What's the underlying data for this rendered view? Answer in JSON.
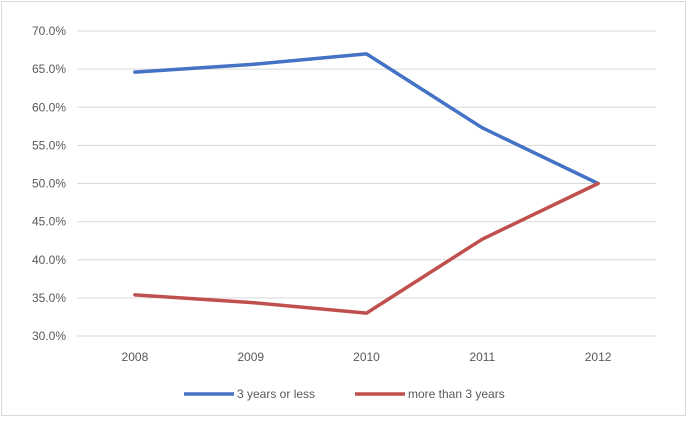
{
  "chart_data": {
    "type": "line",
    "title": "",
    "xlabel": "",
    "ylabel": "",
    "categories": [
      "2008",
      "2009",
      "2010",
      "2011",
      "2012"
    ],
    "ylim": [
      30.0,
      70.0
    ],
    "yticks": [
      30.0,
      35.0,
      40.0,
      45.0,
      50.0,
      55.0,
      60.0,
      65.0,
      70.0
    ],
    "ytick_labels": [
      "30.0%",
      "35.0%",
      "40.0%",
      "45.0%",
      "50.0%",
      "55.0%",
      "60.0%",
      "65.0%",
      "70.0%"
    ],
    "grid": true,
    "legend_position": "bottom",
    "series": [
      {
        "name": "3 years or less",
        "color": "#4472c4",
        "values": [
          64.6,
          65.6,
          67.0,
          57.3,
          50.0
        ]
      },
      {
        "name": "more than 3 years",
        "color": "#c0504d",
        "values": [
          35.4,
          34.4,
          33.0,
          42.7,
          50.0
        ]
      }
    ]
  }
}
